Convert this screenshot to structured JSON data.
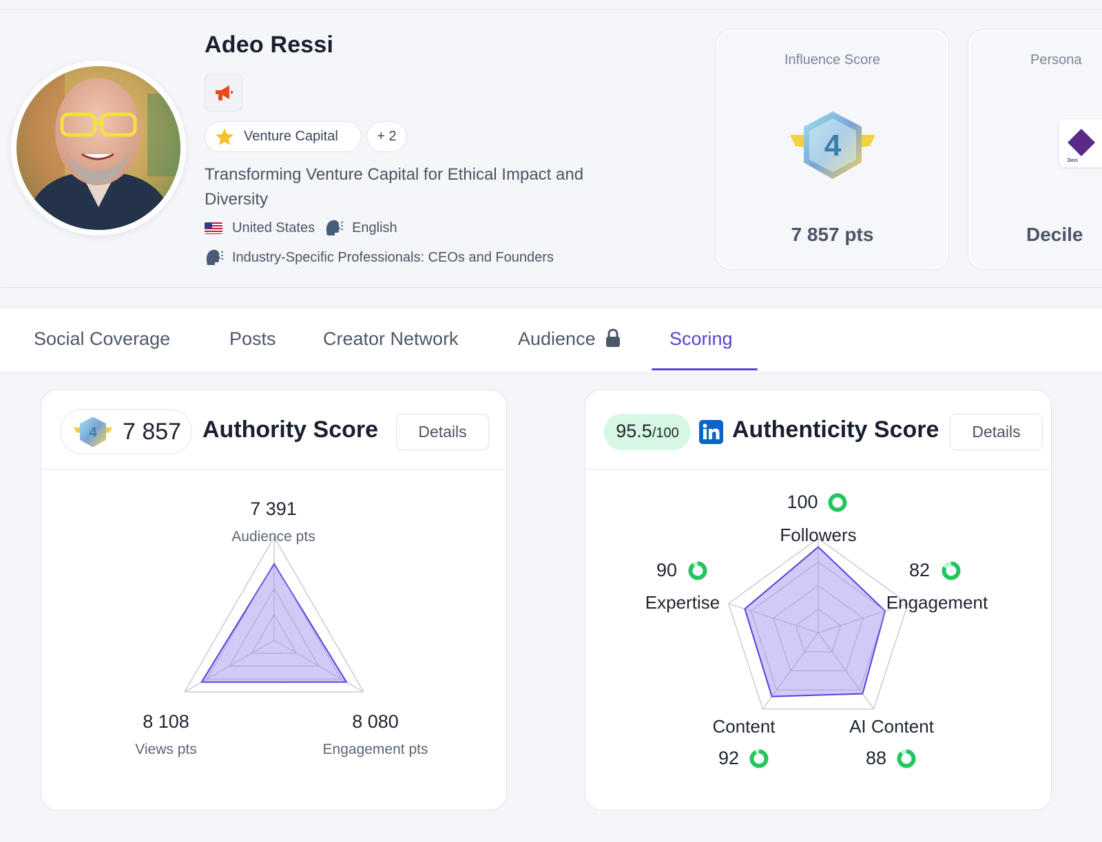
{
  "profile": {
    "name": "Adeo Ressi",
    "category": "Venture Capital",
    "more_categories": "+ 2",
    "tagline": "Transforming Venture Capital for Ethical Impact and Diversity",
    "country": "United States",
    "language": "English",
    "audience_type": "Industry-Specific Professionals: CEOs and Founders"
  },
  "influence": {
    "title": "Influence Score",
    "level": "4",
    "points": "7 857 pts"
  },
  "persona": {
    "title": "Persona",
    "value": "Decile",
    "logo_text": "Deci"
  },
  "tabs": [
    {
      "label": "Social Coverage"
    },
    {
      "label": "Posts"
    },
    {
      "label": "Creator Network"
    },
    {
      "label": "Audience"
    },
    {
      "label": "Scoring"
    }
  ],
  "authority": {
    "badge_level": "4",
    "points": "7 857",
    "title": "Authority Score",
    "details_label": "Details"
  },
  "authenticity": {
    "score": "95.5",
    "max": "/100",
    "title": "Authenticity Score",
    "details_label": "Details"
  },
  "colors": {
    "accent": "#5b3fd6",
    "radar_fill": "#c9c0f5",
    "radar_stroke": "#5140e0",
    "ring_green": "#22c55e",
    "linkedin": "#0a66c2",
    "badge_pill_bg": "#d7f8e3"
  },
  "chart_data": [
    {
      "type": "radar",
      "title": "Authority Score",
      "axes": [
        {
          "value_label": "7 391",
          "label": "Audience pts"
        },
        {
          "value_label": "8 080",
          "label": "Engagement pts"
        },
        {
          "value_label": "8 108",
          "label": "Views pts"
        }
      ],
      "values": [
        7391,
        8080,
        8108
      ],
      "max": 10000
    },
    {
      "type": "radar",
      "title": "Authenticity Score",
      "axes": [
        {
          "value_label": "100",
          "label": "Followers"
        },
        {
          "value_label": "82",
          "label": "Engagement"
        },
        {
          "value_label": "88",
          "label": "AI Content"
        },
        {
          "value_label": "92",
          "label": "Content"
        },
        {
          "value_label": "90",
          "label": "Expertise"
        }
      ],
      "values": [
        100,
        82,
        88,
        92,
        90
      ],
      "max": 110
    }
  ]
}
